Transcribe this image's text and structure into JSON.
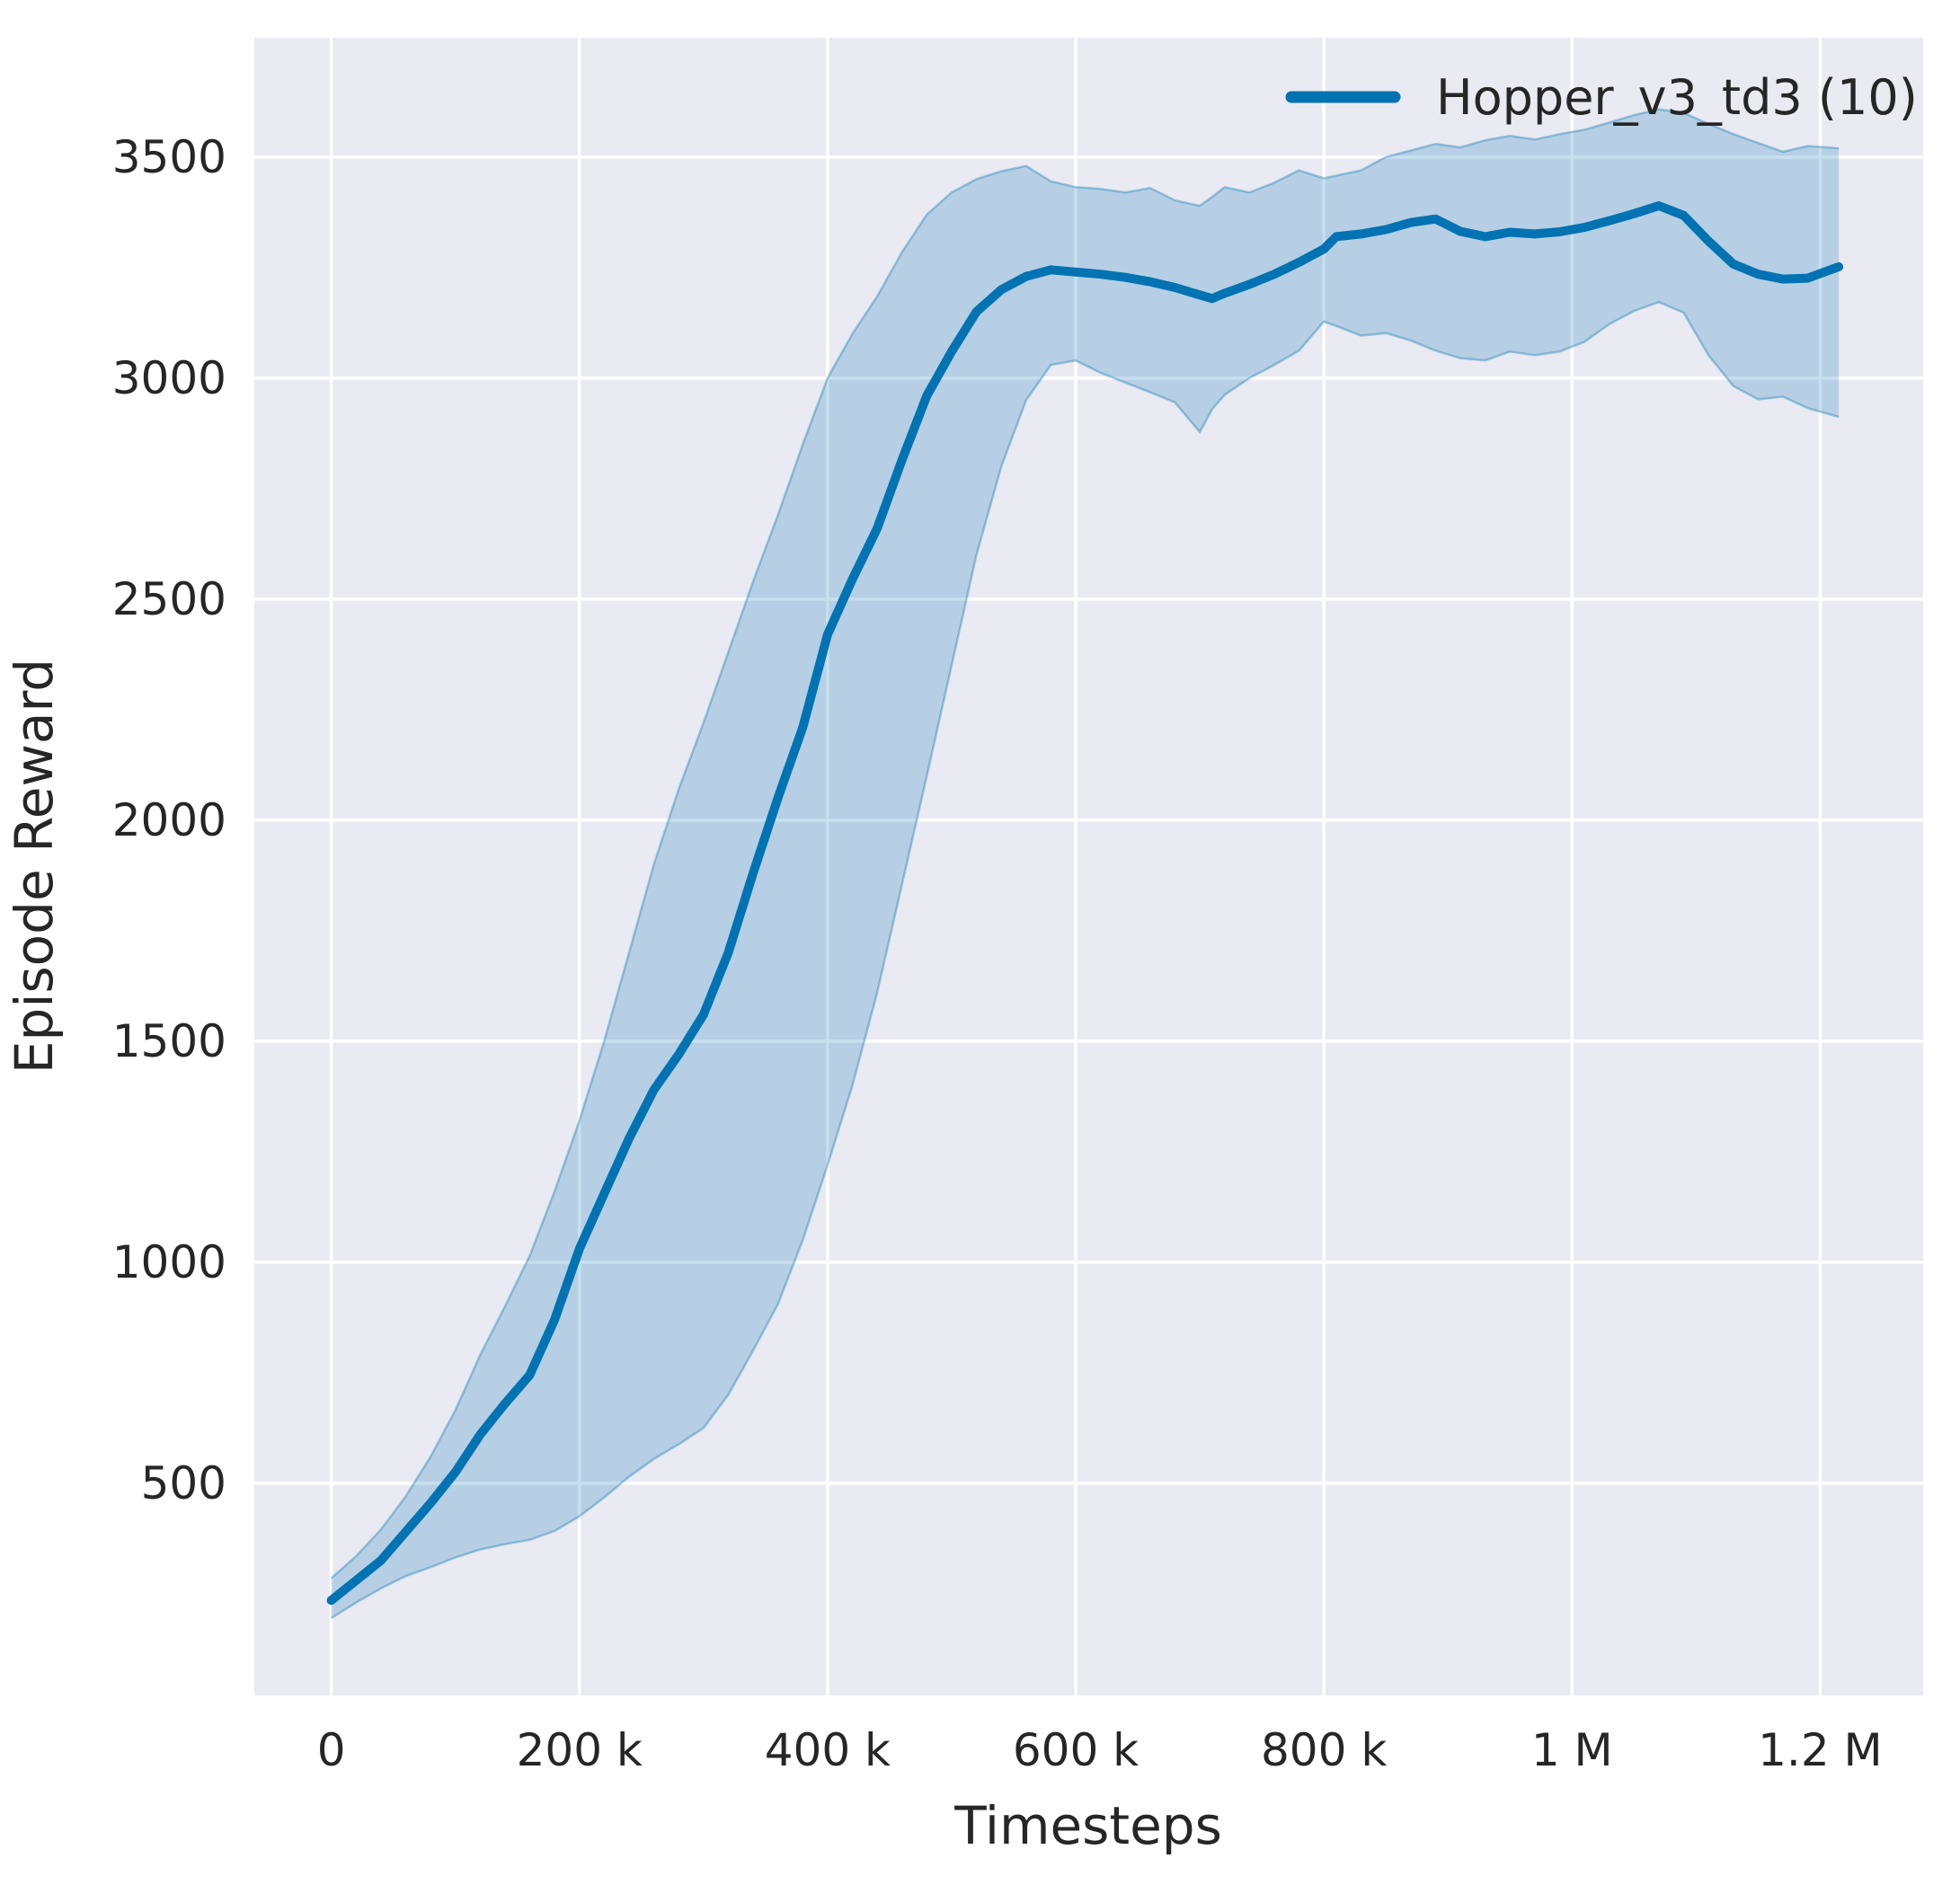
{
  "chart_data": {
    "type": "line",
    "title": "",
    "xlabel": "Timesteps",
    "ylabel": "Episode Reward",
    "legend_position": "upper right",
    "grid": true,
    "xlim": [
      -62000,
      1283000
    ],
    "ylim": [
      20,
      3770
    ],
    "x_ticks": [
      {
        "value": 0,
        "label": "0"
      },
      {
        "value": 200000,
        "label": "200 k"
      },
      {
        "value": 400000,
        "label": "400 k"
      },
      {
        "value": 600000,
        "label": "600 k"
      },
      {
        "value": 800000,
        "label": "800 k"
      },
      {
        "value": 1000000,
        "label": "1 M"
      },
      {
        "value": 1200000,
        "label": "1.2 M"
      }
    ],
    "y_ticks": [
      {
        "value": 500,
        "label": "500"
      },
      {
        "value": 1000,
        "label": "1000"
      },
      {
        "value": 1500,
        "label": "1500"
      },
      {
        "value": 2000,
        "label": "2000"
      },
      {
        "value": 2500,
        "label": "2500"
      },
      {
        "value": 3000,
        "label": "3000"
      },
      {
        "value": 3500,
        "label": "3500"
      }
    ],
    "series": [
      {
        "name": "Hopper_v3_td3 (10)",
        "color": "#0173b2",
        "band_fill": "rgba(1,115,178,0.22)",
        "band_edge": "rgba(1,115,178,0.35)",
        "x": [
          0,
          20000,
          40000,
          60000,
          80000,
          100000,
          120000,
          140000,
          160000,
          180000,
          200000,
          220000,
          240000,
          260000,
          280000,
          300000,
          320000,
          340000,
          360000,
          380000,
          400000,
          420000,
          440000,
          460000,
          480000,
          500000,
          520000,
          540000,
          560000,
          580000,
          600000,
          620000,
          640000,
          660000,
          680000,
          700000,
          710000,
          720000,
          740000,
          760000,
          780000,
          800000,
          810000,
          830000,
          850000,
          870000,
          890000,
          910000,
          930000,
          950000,
          970000,
          990000,
          1010000,
          1030000,
          1050000,
          1070000,
          1090000,
          1110000,
          1130000,
          1150000,
          1170000,
          1190000,
          1215000
        ],
        "mean": [
          235,
          280,
          325,
          390,
          455,
          525,
          610,
          680,
          745,
          870,
          1030,
          1155,
          1280,
          1390,
          1470,
          1560,
          1700,
          1880,
          2050,
          2210,
          2420,
          2545,
          2660,
          2815,
          2960,
          3060,
          3150,
          3200,
          3230,
          3245,
          3240,
          3235,
          3228,
          3218,
          3205,
          3188,
          3180,
          3192,
          3212,
          3235,
          3262,
          3292,
          3320,
          3326,
          3336,
          3352,
          3360,
          3332,
          3320,
          3330,
          3326,
          3331,
          3341,
          3356,
          3372,
          3390,
          3368,
          3310,
          3258,
          3235,
          3224,
          3226,
          3252
        ],
        "band_upper": [
          285,
          335,
          395,
          470,
          560,
          665,
          790,
          900,
          1015,
          1160,
          1320,
          1500,
          1700,
          1900,
          2070,
          2220,
          2380,
          2540,
          2690,
          2850,
          3000,
          3100,
          3185,
          3285,
          3370,
          3420,
          3450,
          3468,
          3480,
          3445,
          3432,
          3428,
          3420,
          3430,
          3402,
          3390,
          3410,
          3432,
          3420,
          3442,
          3470,
          3452,
          3458,
          3470,
          3500,
          3515,
          3530,
          3522,
          3538,
          3548,
          3540,
          3552,
          3562,
          3578,
          3595,
          3608,
          3600,
          3575,
          3552,
          3532,
          3512,
          3525,
          3520
        ],
        "band_lower": [
          195,
          230,
          262,
          290,
          310,
          332,
          350,
          362,
          372,
          392,
          425,
          468,
          515,
          555,
          588,
          625,
          700,
          800,
          905,
          1050,
          1220,
          1400,
          1610,
          1855,
          2100,
          2350,
          2600,
          2800,
          2950,
          3030,
          3040,
          3012,
          2990,
          2968,
          2945,
          2878,
          2930,
          2962,
          3000,
          3030,
          3062,
          3128,
          3118,
          3096,
          3102,
          3085,
          3062,
          3045,
          3040,
          3060,
          3052,
          3060,
          3082,
          3122,
          3152,
          3172,
          3148,
          3052,
          2982,
          2952,
          2958,
          2932,
          2912
        ]
      }
    ]
  },
  "colors": {
    "figure_background": "#ffffff",
    "plot_background": "#eaeaf2",
    "gridline": "#ffffff",
    "text": "#262626",
    "accent": "#0173b2"
  }
}
